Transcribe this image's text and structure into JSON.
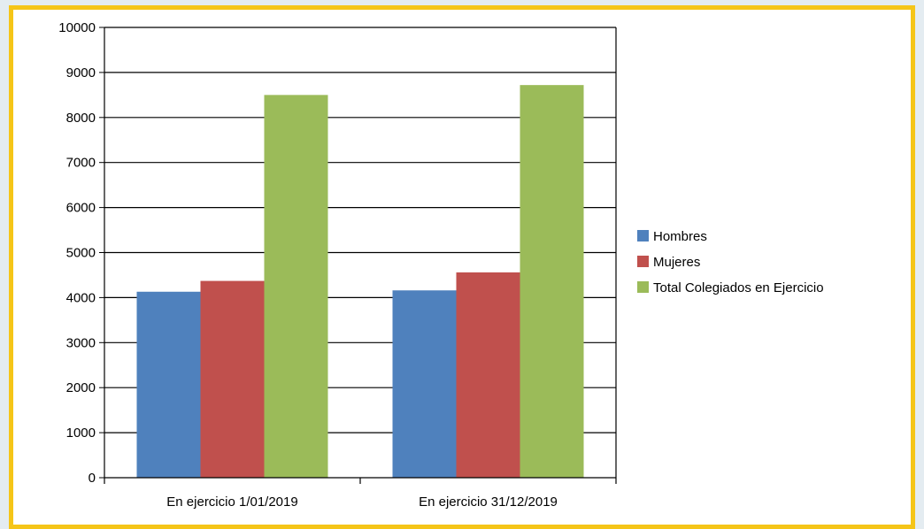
{
  "chart_data": {
    "type": "bar",
    "title": "",
    "xlabel": "",
    "ylabel": "",
    "categories": [
      "En ejercicio 1/01/2019",
      "En ejercicio 31/12/2019"
    ],
    "series": [
      {
        "name": "Hombres",
        "color": "#4f81bd",
        "values": [
          4130,
          4160
        ]
      },
      {
        "name": "Mujeres",
        "color": "#c0504d",
        "values": [
          4370,
          4560
        ]
      },
      {
        "name": "Total Colegiados en Ejercicio",
        "color": "#9bbb59",
        "values": [
          8500,
          8720
        ]
      }
    ],
    "ylim": [
      0,
      10000
    ],
    "yticks": [
      "0",
      "1000",
      "2000",
      "3000",
      "4000",
      "5000",
      "6000",
      "7000",
      "8000",
      "9000",
      "10000"
    ],
    "grid": true,
    "legend_position": "right"
  }
}
